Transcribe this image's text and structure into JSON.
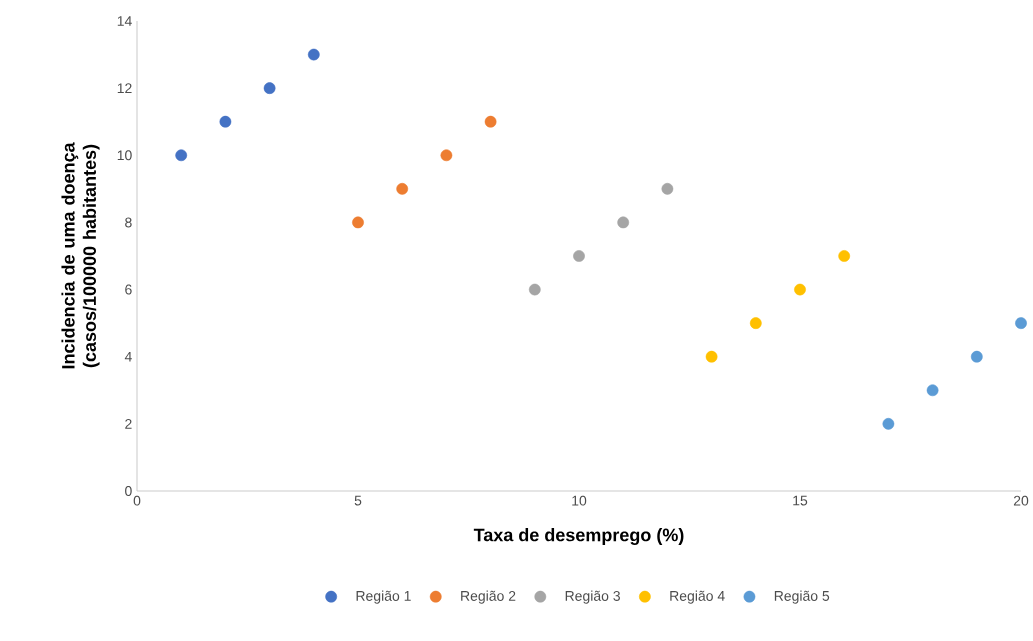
{
  "chart_data": {
    "type": "scatter",
    "xlabel": "Taxa de desemprego (%)",
    "ylabel": "Incidencia de uma doença (casos/100000 habitantes)",
    "xlim": [
      0,
      20
    ],
    "ylim": [
      0,
      14
    ],
    "xticks": [
      0,
      5,
      10,
      15,
      20
    ],
    "yticks": [
      0,
      2,
      4,
      6,
      8,
      10,
      12,
      14
    ],
    "marker": "circle",
    "legend": "bottom",
    "grid": false,
    "series": [
      {
        "name": "Região 1",
        "color": "#4472c4",
        "x": [
          1,
          2,
          3,
          4
        ],
        "values": [
          10,
          11,
          12,
          13
        ]
      },
      {
        "name": "Região 2",
        "color": "#ed7d31",
        "x": [
          5,
          6,
          7,
          8
        ],
        "values": [
          8,
          9,
          10,
          11
        ]
      },
      {
        "name": "Região 3",
        "color": "#a5a5a5",
        "x": [
          9,
          10,
          11,
          12
        ],
        "values": [
          6,
          7,
          8,
          9
        ]
      },
      {
        "name": "Região 4",
        "color": "#ffc000",
        "x": [
          13,
          14,
          15,
          16
        ],
        "values": [
          4,
          5,
          6,
          7
        ]
      },
      {
        "name": "Região 5",
        "color": "#5b9bd5",
        "x": [
          17,
          18,
          19,
          20
        ],
        "values": [
          2,
          3,
          4,
          5
        ]
      }
    ]
  }
}
